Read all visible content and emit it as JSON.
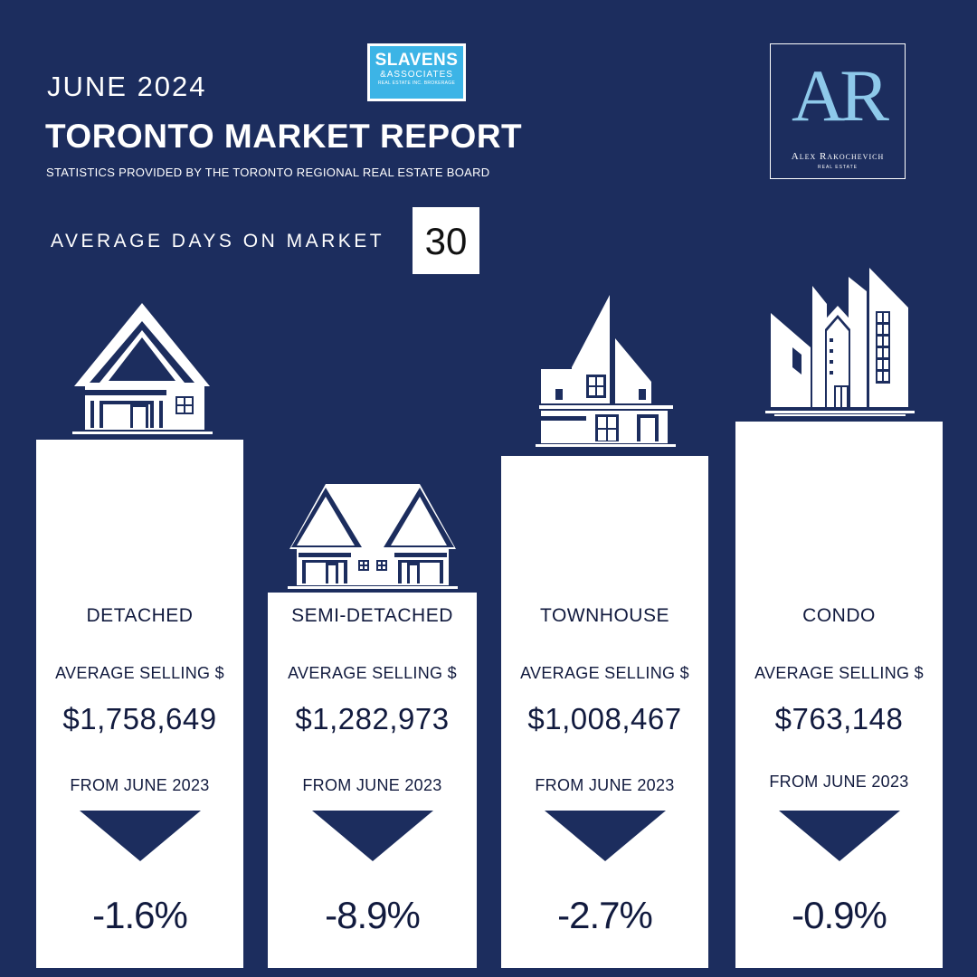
{
  "header": {
    "month": "JUNE 2024",
    "title": "TORONTO MARKET REPORT",
    "subtitle": "STATISTICS PROVIDED BY THE TORONTO REGIONAL REAL ESTATE BOARD"
  },
  "brokerage_logo": {
    "name": "SLAVENS",
    "sub": "&ASSOCIATES",
    "tiny": "REAL ESTATE INC. BROKERAGE",
    "color": "#3cb4e6"
  },
  "agent_logo": {
    "monogram": "AR",
    "name": "Alex Rakochevich",
    "sub": "REAL ESTATE",
    "color": "#8ec9ea"
  },
  "days_on_market": {
    "label": "AVERAGE DAYS ON MARKET",
    "value": "30"
  },
  "colors": {
    "background": "#1c2d5e",
    "card": "#ffffff",
    "text_dark": "#111a3e"
  },
  "cards": [
    {
      "type": "DETACHED",
      "avg_label": "AVERAGE SELLING $",
      "price": "$1,758,649",
      "from_label": "FROM JUNE 2023",
      "direction_icon": "down-triangle-icon",
      "change": "-1.6%",
      "icon": "detached-house-icon"
    },
    {
      "type": "SEMI-DETACHED",
      "avg_label": "AVERAGE SELLING $",
      "price": "$1,282,973",
      "from_label": "FROM JUNE 2023",
      "direction_icon": "down-triangle-icon",
      "change": "-8.9%",
      "icon": "semi-detached-house-icon"
    },
    {
      "type": "TOWNHOUSE",
      "avg_label": "AVERAGE SELLING $",
      "price": "$1,008,467",
      "from_label": "FROM JUNE 2023",
      "direction_icon": "down-triangle-icon",
      "change": "-2.7%",
      "icon": "townhouse-icon"
    },
    {
      "type": "CONDO",
      "avg_label": "AVERAGE SELLING $",
      "price": "$763,148",
      "from_label": "FROM JUNE 2023",
      "direction_icon": "down-triangle-icon",
      "change": "-0.9%",
      "icon": "condo-building-icon"
    }
  ]
}
